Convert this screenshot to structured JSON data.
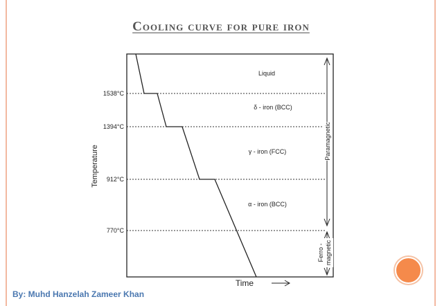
{
  "slide": {
    "title": "Cooling curve for pure iron",
    "author": "By: Muhd Hanzelah Zameer Khan"
  },
  "diagram": {
    "ylabel": "Temperature",
    "xlabel": "Time",
    "temperatures": [
      {
        "label": "1538°C",
        "value": 1538
      },
      {
        "label": "1394°C",
        "value": 1394
      },
      {
        "label": "912°C",
        "value": 912
      },
      {
        "label": "770°C",
        "value": 770
      }
    ],
    "phases": [
      "Liquid",
      "δ - iron   (BCC)",
      "γ - iron   (FCC)",
      "α - iron   (BCC)"
    ],
    "magnetic": {
      "paramagnetic": "Paramagnetic",
      "ferro_line1": "Ferro -",
      "ferro_line2": "magnetic"
    },
    "colors": {
      "border": "#f3b8a0",
      "accent": "#f58a4b",
      "author": "#4b78b0"
    }
  }
}
